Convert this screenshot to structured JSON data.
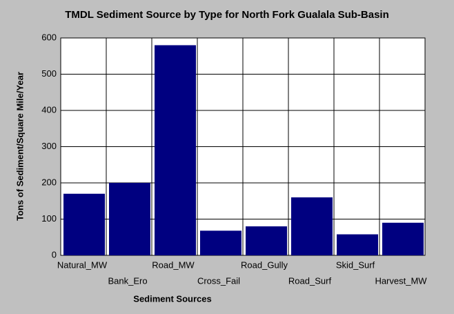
{
  "chart_data": {
    "type": "bar",
    "title": "TMDL Sediment Source by Type for North Fork Gualala Sub-Basin",
    "x_label": "Sediment Sources",
    "y_label": "Tons of Sediment/Square Mile/Year",
    "categories": [
      "Natural_MW",
      "Bank_Ero",
      "Road_MW",
      "Cross_Fail",
      "Road_Gully",
      "Road_Surf",
      "Skid_Surf",
      "Harvest_MW"
    ],
    "values": [
      170,
      200,
      580,
      68,
      80,
      160,
      58,
      90
    ],
    "color": "#000080",
    "ylim": [
      0,
      600
    ],
    "yticks": [
      0,
      100,
      200,
      300,
      400,
      500,
      600
    ],
    "grid": true
  }
}
